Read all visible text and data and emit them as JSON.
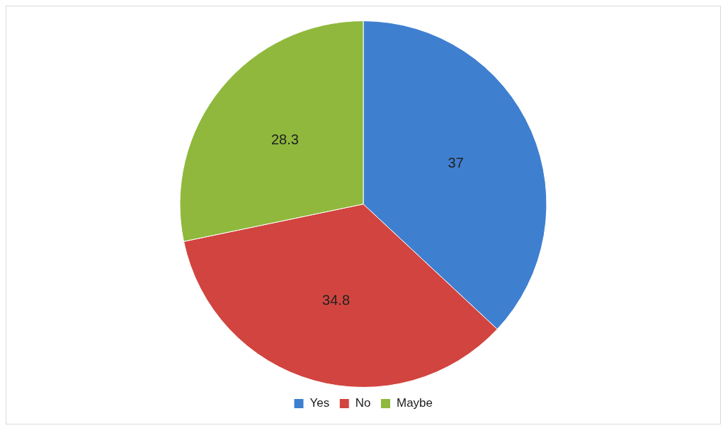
{
  "chart_data": {
    "type": "pie",
    "categories": [
      "Yes",
      "No",
      "Maybe"
    ],
    "values": [
      37,
      34.8,
      28.3
    ],
    "colors": [
      "#3f7fd0",
      "#d2443f",
      "#8fb83c"
    ],
    "data_labels": true,
    "legend": "bottom"
  }
}
